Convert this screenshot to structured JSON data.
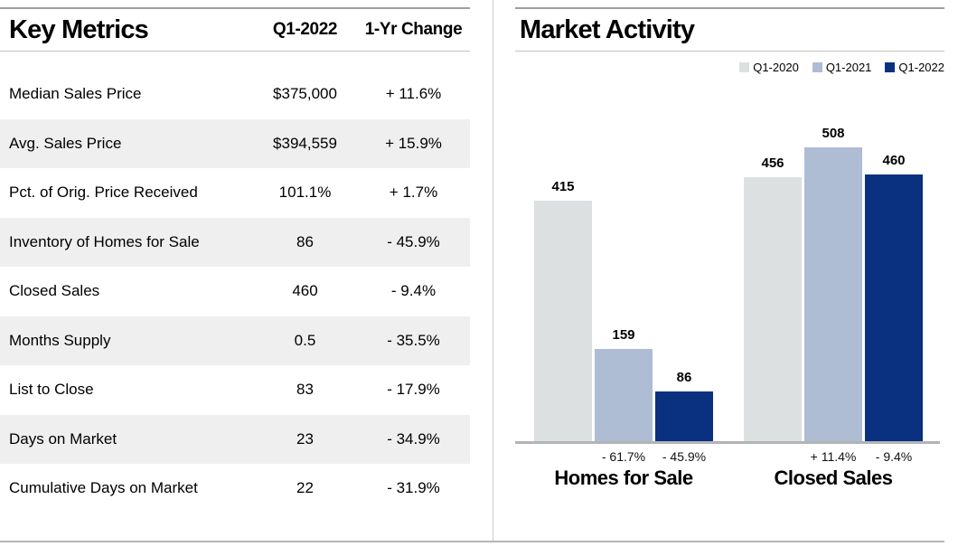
{
  "key_metrics": {
    "title": "Key Metrics",
    "columns": [
      "Q1-2022",
      "1-Yr Change"
    ],
    "rows": [
      {
        "label": "Median Sales Price",
        "value": "$375,000",
        "change": "+ 11.6%"
      },
      {
        "label": "Avg. Sales Price",
        "value": "$394,559",
        "change": "+ 15.9%"
      },
      {
        "label": "Pct. of Orig. Price Received",
        "value": "101.1%",
        "change": "+ 1.7%"
      },
      {
        "label": "Inventory of Homes for Sale",
        "value": "86",
        "change": "- 45.9%"
      },
      {
        "label": "Closed Sales",
        "value": "460",
        "change": "- 9.4%"
      },
      {
        "label": "Months Supply",
        "value": "0.5",
        "change": "- 35.5%"
      },
      {
        "label": "List to Close",
        "value": "83",
        "change": "- 17.9%"
      },
      {
        "label": "Days on Market",
        "value": "23",
        "change": "- 34.9%"
      },
      {
        "label": "Cumulative Days on Market",
        "value": "22",
        "change": "- 31.9%"
      }
    ]
  },
  "market_activity": {
    "title": "Market Activity"
  },
  "colors": {
    "q1_2020": "#dce0e0",
    "q1_2021": "#aebcd4",
    "q1_2022": "#0a3180",
    "row_shade": "#efefef",
    "axis": "#b2b5b5"
  },
  "chart_data": {
    "type": "bar",
    "title": "Market Activity",
    "categories": [
      "Homes for Sale",
      "Closed Sales"
    ],
    "series": [
      {
        "name": "Q1-2020",
        "color": "#dce0e0",
        "values": [
          415,
          456
        ],
        "change_labels": [
          "",
          ""
        ]
      },
      {
        "name": "Q1-2021",
        "color": "#aebcd4",
        "values": [
          159,
          508
        ],
        "change_labels": [
          "- 61.7%",
          "+ 11.4%"
        ]
      },
      {
        "name": "Q1-2022",
        "color": "#0a3180",
        "values": [
          86,
          460
        ],
        "change_labels": [
          "- 45.9%",
          "- 9.4%"
        ]
      }
    ],
    "ylim": [
      0,
      540
    ],
    "grid": false,
    "value_labels": true,
    "legend_position": "top-right",
    "xlabel": "",
    "ylabel": ""
  }
}
